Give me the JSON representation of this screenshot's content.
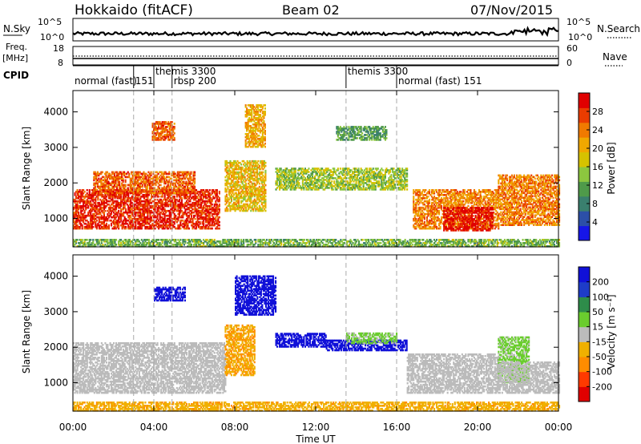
{
  "header": {
    "station": "Hokkaido (fitACF)",
    "beam": "Beam 02",
    "date": "07/Nov/2015"
  },
  "aux_panels": {
    "nsky": {
      "label": "N.Sky",
      "ticks": [
        "10^5",
        "10^0"
      ]
    },
    "nsearch": {
      "label": "N.Search",
      "ticks": [
        "10^5",
        "10^0"
      ]
    },
    "freq": {
      "label_line1": "Freq.",
      "label_line2": "[MHz]",
      "ticks": [
        "18",
        "8"
      ]
    },
    "nave": {
      "label": "Nave",
      "ticks": [
        "60",
        "0"
      ]
    },
    "cpid": {
      "label": "CPID"
    }
  },
  "cpid_segments": [
    {
      "label": "normal (fast)",
      "start_h": 0.0
    },
    {
      "label": "151",
      "start_h": 3.0
    },
    {
      "label": "themis 3300",
      "start_h": 4.0
    },
    {
      "label": "rbsp 200",
      "start_h": 4.9
    },
    {
      "label": "themis 3300",
      "start_h": 13.5
    },
    {
      "label": "normal (fast) 151",
      "start_h": 16.0
    }
  ],
  "chart_data": [
    {
      "type": "heatmap",
      "panel": "power",
      "xlabel": "",
      "ylabel": "Slant Range [km]",
      "xlim": [
        0,
        24
      ],
      "ylim": [
        200,
        4600
      ],
      "y_ticks": [
        1000,
        2000,
        3000,
        4000
      ],
      "colorbar": {
        "label": "Power [dB]",
        "ticks": [
          "28",
          "24",
          "20",
          "16",
          "12",
          "8",
          "4"
        ],
        "range": [
          0,
          30
        ],
        "colors": [
          "#1616e8",
          "#2c4fa8",
          "#3a7f6e",
          "#4f9a4a",
          "#8cc63f",
          "#d6c200",
          "#f0a800",
          "#f07a00",
          "#ea3c00",
          "#e00000"
        ]
      },
      "regions": [
        {
          "t0": 0.0,
          "t1": 7.2,
          "r0": 700,
          "r1": 1800,
          "value": 27
        },
        {
          "t0": 1.0,
          "t1": 6.0,
          "r0": 1700,
          "r1": 2300,
          "value": 24
        },
        {
          "t0": 3.9,
          "t1": 5.0,
          "r0": 3200,
          "r1": 3700,
          "value": 24
        },
        {
          "t0": 7.5,
          "t1": 9.5,
          "r0": 1200,
          "r1": 2600,
          "value": 18
        },
        {
          "t0": 8.5,
          "t1": 9.5,
          "r0": 3000,
          "r1": 4200,
          "value": 20
        },
        {
          "t0": 10.0,
          "t1": 16.5,
          "r0": 1800,
          "r1": 2400,
          "value": 14
        },
        {
          "t0": 13.0,
          "t1": 15.5,
          "r0": 3200,
          "r1": 3600,
          "value": 10
        },
        {
          "t0": 16.8,
          "t1": 21.0,
          "r0": 700,
          "r1": 1800,
          "value": 22
        },
        {
          "t0": 18.3,
          "t1": 20.7,
          "r0": 650,
          "r1": 1300,
          "value": 29
        },
        {
          "t0": 21.0,
          "t1": 24.0,
          "r0": 800,
          "r1": 2200,
          "value": 22
        },
        {
          "t0": 0.0,
          "t1": 24.0,
          "r0": 200,
          "r1": 400,
          "value": 12
        }
      ]
    },
    {
      "type": "heatmap",
      "panel": "velocity",
      "xlabel": "Time UT",
      "ylabel": "Slant Range [km]",
      "xlim": [
        0,
        24
      ],
      "ylim": [
        200,
        4600
      ],
      "x_ticks": [
        "00:00",
        "04:00",
        "08:00",
        "12:00",
        "16:00",
        "20:00",
        "00:00"
      ],
      "y_ticks": [
        1000,
        2000,
        3000,
        4000
      ],
      "colorbar": {
        "label": "Velocity [m s⁻¹]",
        "ticks": [
          "200",
          "100",
          "50",
          "15",
          "-15",
          "-50",
          "-100",
          "-200"
        ],
        "range": [
          -250,
          250
        ],
        "colors": [
          "#e00000",
          "#ff3a00",
          "#ff8c00",
          "#f0b000",
          "#bbbbbb",
          "#6acd2e",
          "#2e8c4a",
          "#1e3cc8",
          "#1010d8"
        ]
      },
      "regions": [
        {
          "t0": 0.0,
          "t1": 7.5,
          "r0": 700,
          "r1": 2100,
          "value": 0
        },
        {
          "t0": 4.0,
          "t1": 5.5,
          "r0": 3300,
          "r1": 3700,
          "value": 230
        },
        {
          "t0": 8.0,
          "t1": 10.0,
          "r0": 2900,
          "r1": 4000,
          "value": 230
        },
        {
          "t0": 7.5,
          "t1": 9.0,
          "r0": 1200,
          "r1": 2600,
          "value": -80
        },
        {
          "t0": 10.0,
          "t1": 12.5,
          "r0": 2000,
          "r1": 2400,
          "value": 230
        },
        {
          "t0": 12.5,
          "t1": 16.5,
          "r0": 1900,
          "r1": 2200,
          "value": 230
        },
        {
          "t0": 13.5,
          "t1": 16.0,
          "r0": 2100,
          "r1": 2400,
          "value": 40
        },
        {
          "t0": 16.5,
          "t1": 21.0,
          "r0": 700,
          "r1": 1800,
          "value": 0
        },
        {
          "t0": 21.0,
          "t1": 22.5,
          "r0": 1000,
          "r1": 2300,
          "value": 40
        },
        {
          "t0": 21.0,
          "t1": 24.0,
          "r0": 700,
          "r1": 1600,
          "value": 0
        },
        {
          "t0": 0.0,
          "t1": 24.0,
          "r0": 200,
          "r1": 450,
          "value": -70
        }
      ]
    }
  ]
}
